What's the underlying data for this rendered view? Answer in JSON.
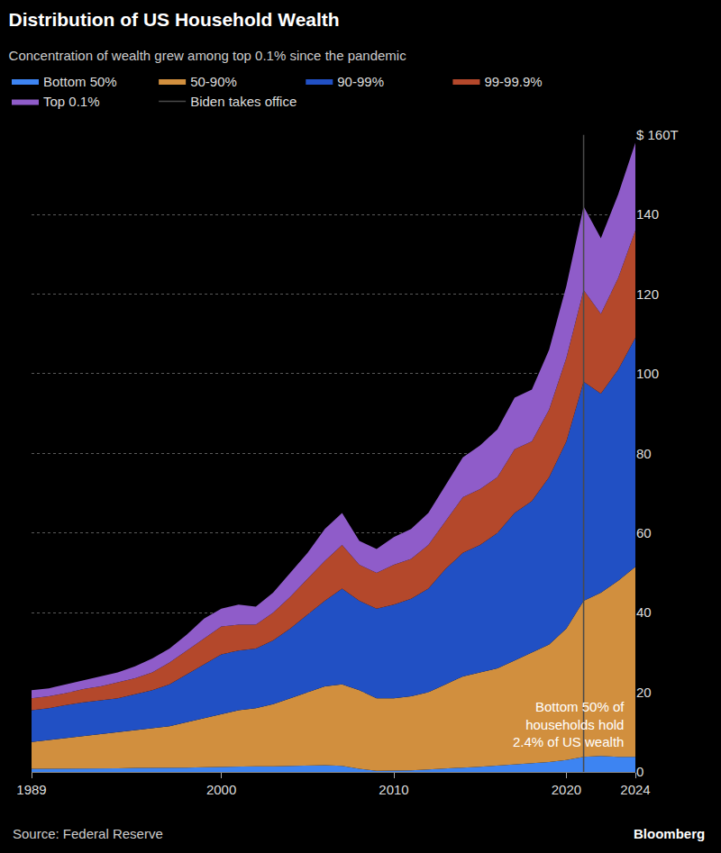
{
  "chart_data": {
    "type": "area",
    "stacked": true,
    "grid": true,
    "legend": "top-left",
    "title": "Distribution of US Household Wealth",
    "subtitle": "Concentration of wealth grew among top 0.1% since the pandemic",
    "source": "Source: Federal Reserve",
    "credit": "Bloomberg",
    "annotation": [
      "Bottom 50% of",
      "households hold",
      "2.4% of US wealth"
    ],
    "x": [
      1989,
      1990,
      1991,
      1992,
      1993,
      1994,
      1995,
      1996,
      1997,
      1998,
      1999,
      2000,
      2001,
      2002,
      2003,
      2004,
      2005,
      2006,
      2007,
      2008,
      2009,
      2010,
      2011,
      2012,
      2013,
      2014,
      2015,
      2016,
      2017,
      2018,
      2019,
      2020,
      2021,
      2022,
      2023,
      2024
    ],
    "xlim": [
      1989,
      2024
    ],
    "xticks": [
      1989,
      2000,
      2010,
      2020,
      2024
    ],
    "ylim": [
      0,
      160
    ],
    "yticks": [
      0,
      20,
      40,
      60,
      80,
      100,
      120,
      140,
      {
        "value": 160,
        "label": "$ 160T"
      }
    ],
    "series": [
      {
        "name": "Bottom 50%",
        "color": "#3d84f2",
        "values": [
          0.8,
          0.8,
          0.8,
          0.9,
          0.9,
          0.9,
          1.0,
          1.0,
          1.1,
          1.1,
          1.2,
          1.3,
          1.4,
          1.4,
          1.4,
          1.5,
          1.6,
          1.7,
          1.5,
          0.8,
          0.3,
          0.3,
          0.4,
          0.6,
          0.9,
          1.1,
          1.3,
          1.6,
          2.0,
          2.2,
          2.5,
          3.0,
          3.8,
          4.0,
          3.8,
          3.8
        ]
      },
      {
        "name": "50-90%",
        "color": "#d18f3e",
        "values": [
          6.7,
          7.2,
          7.7,
          8.1,
          8.6,
          9.1,
          9.5,
          10,
          10.4,
          11.4,
          12.3,
          13.2,
          14.1,
          14.6,
          15.6,
          17,
          18.4,
          19.8,
          20.5,
          19.7,
          18.2,
          18.2,
          18.6,
          19.4,
          21.1,
          22.9,
          23.7,
          24.4,
          26,
          27.8,
          29.5,
          33,
          39.2,
          41,
          44.2,
          47.7
        ]
      },
      {
        "name": "90-99%",
        "color": "#2150c4",
        "values": [
          8,
          8,
          8.3,
          8.5,
          8.5,
          8.5,
          9,
          9.5,
          10.5,
          12,
          13.5,
          15,
          15,
          15,
          16,
          17.5,
          19.5,
          21.5,
          24,
          22.5,
          22.5,
          23.5,
          24.5,
          26,
          29,
          31,
          32,
          34,
          37,
          38,
          42,
          47,
          55,
          50,
          53,
          57.5
        ]
      },
      {
        "name": "99-99.9%",
        "color": "#b4482b",
        "values": [
          3,
          3,
          3,
          3.3,
          3.5,
          4,
          4,
          4.5,
          5.5,
          6,
          6.5,
          7,
          6.5,
          6,
          7,
          8,
          9,
          10,
          11,
          9,
          9,
          10,
          10,
          11,
          12,
          14,
          14,
          14,
          16,
          15,
          17,
          21,
          23,
          20,
          23,
          27
        ]
      },
      {
        "name": "Top 0.1%",
        "color": "#8f5cc9",
        "values": [
          2,
          2,
          2.2,
          2.2,
          2.5,
          2.5,
          3,
          3.5,
          3.5,
          4,
          5,
          4.5,
          5,
          4.5,
          5,
          6,
          6.5,
          8,
          8,
          6,
          6,
          7,
          7.5,
          8,
          9,
          10,
          11,
          12,
          13,
          13,
          15,
          18,
          21,
          19,
          21,
          22
        ]
      }
    ],
    "events": [
      {
        "name": "Biden takes office",
        "x": 2021,
        "color": "#4a4a4a"
      }
    ]
  }
}
